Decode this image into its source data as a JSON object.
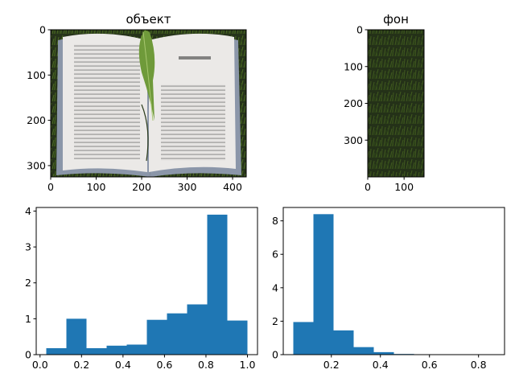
{
  "chart_data": [
    {
      "type": "image",
      "title": "объект",
      "xlim": [
        0,
        430
      ],
      "ylim": [
        325,
        0
      ],
      "xticks": [
        0,
        100,
        200,
        300,
        400
      ],
      "yticks": [
        0,
        100,
        200,
        300
      ],
      "image": "photo of an open book (CHAPTER SIX) with a green leaf bookmark on a dark grass background",
      "image_colors": {
        "page": "#e8e6e4",
        "cover": "#8a95a8",
        "leaf": "#6f9a3a",
        "grass": "#2a3a1a"
      }
    },
    {
      "type": "image",
      "title": "фон",
      "xlim": [
        0,
        155
      ],
      "ylim": [
        400,
        0
      ],
      "xticks": [
        0,
        100
      ],
      "yticks": [
        0,
        100,
        200,
        300
      ],
      "image": "crop of dark green grass texture",
      "image_colors": {
        "base": "#2b3a18",
        "highlight": "#5a7a2a"
      }
    },
    {
      "type": "bar",
      "title": "",
      "histogram": true,
      "bin_edges": [
        0.03,
        0.127,
        0.224,
        0.321,
        0.418,
        0.515,
        0.612,
        0.709,
        0.806,
        0.903,
        1.0
      ],
      "values": [
        0.18,
        1.0,
        0.18,
        0.25,
        0.28,
        0.97,
        1.15,
        1.4,
        3.9,
        0.95
      ],
      "xlim": [
        -0.0185,
        1.0485
      ],
      "ylim": [
        0,
        4.1
      ],
      "xticks": [
        0.0,
        0.2,
        0.4,
        0.6,
        0.8,
        1.0
      ],
      "xtick_labels": [
        "0.0",
        "0.2",
        "0.4",
        "0.6",
        "0.8",
        "1.0"
      ],
      "yticks": [
        0,
        1,
        2,
        3,
        4
      ],
      "ytick_labels": [
        "0",
        "1",
        "2",
        "3",
        "4"
      ],
      "color": "#1f77b4"
    },
    {
      "type": "bar",
      "title": "",
      "histogram": true,
      "bin_edges": [
        0.045,
        0.127,
        0.209,
        0.291,
        0.373,
        0.455,
        0.537,
        0.619,
        0.701,
        0.783,
        0.865
      ],
      "values": [
        1.95,
        8.4,
        1.45,
        0.45,
        0.15,
        0.04,
        0.0,
        0.0,
        0.0,
        0.01
      ],
      "xlim": [
        0.004,
        0.906
      ],
      "ylim": [
        0,
        8.8
      ],
      "xticks": [
        0.2,
        0.4,
        0.6,
        0.8
      ],
      "xtick_labels": [
        "0.2",
        "0.4",
        "0.6",
        "0.8"
      ],
      "yticks": [
        0,
        2,
        4,
        6,
        8
      ],
      "ytick_labels": [
        "0",
        "2",
        "4",
        "6",
        "8"
      ],
      "color": "#1f77b4"
    }
  ]
}
